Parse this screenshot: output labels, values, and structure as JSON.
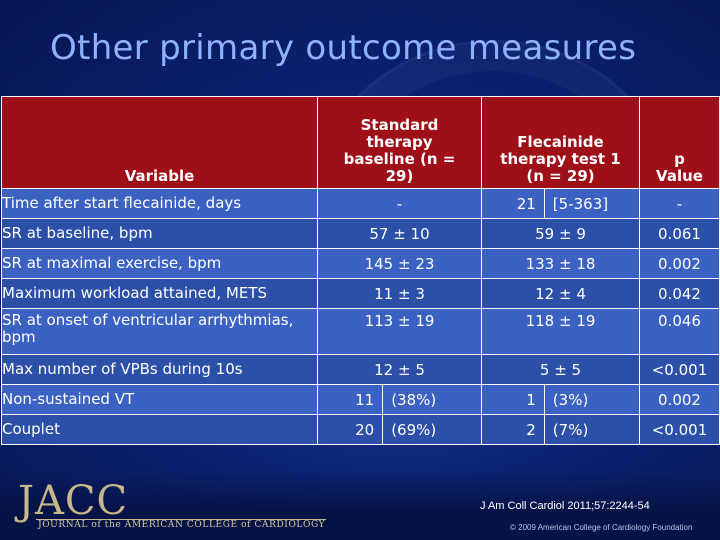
{
  "title": "Other primary outcome measures",
  "table": {
    "headers": [
      "Variable",
      "Standard therapy baseline (n = 29)",
      "Flecainide therapy test 1 (n = 29)",
      "p Value"
    ],
    "rows": [
      {
        "variable": "Time after start flecainide, days",
        "standard": "-",
        "flecainide_main": "21",
        "flecainide_extra": "[5-363]",
        "p": "-"
      },
      {
        "variable": "SR at baseline, bpm",
        "standard": "57 ± 10",
        "flecainide": "59 ± 9",
        "p": "0.061"
      },
      {
        "variable": "SR at maximal exercise, bpm",
        "standard": "145 ± 23",
        "flecainide": "133 ± 18",
        "p": "0.002"
      },
      {
        "variable": "Maximum workload attained, METS",
        "standard": "11 ± 3",
        "flecainide": "12 ± 4",
        "p": "0.042"
      },
      {
        "variable": "SR at onset of ventricular arrhythmias, bpm",
        "standard": "113 ± 19",
        "flecainide": "118 ± 19",
        "p": "0.046"
      },
      {
        "variable": "Max number of VPBs during 10s",
        "standard": "12 ± 5",
        "flecainide": "5 ± 5",
        "p": "<0.001"
      },
      {
        "variable": "Non-sustained VT",
        "standard_n": "11",
        "standard_pct": "(38%)",
        "flecainide_n": "1",
        "flecainide_pct": "(3%)",
        "p": "0.002"
      },
      {
        "variable": "Couplet",
        "standard_n": "20",
        "standard_pct": "(69%)",
        "flecainide_n": "2",
        "flecainide_pct": "(7%)",
        "p": "<0.001"
      }
    ]
  },
  "footer": {
    "logo": "JACC",
    "journal": "JOURNAL of the AMERICAN COLLEGE of CARDIOLOGY",
    "citation": "J Am Coll Cardiol 2011;57:2244-54",
    "copyright": "© 2009 American College of Cardiology Foundation"
  },
  "colors": {
    "background": "#0c2373",
    "title": "#8fb2ff",
    "header": "#9e0f18",
    "row_odd": "#2c4fa8",
    "row_even": "#3b62c2"
  }
}
